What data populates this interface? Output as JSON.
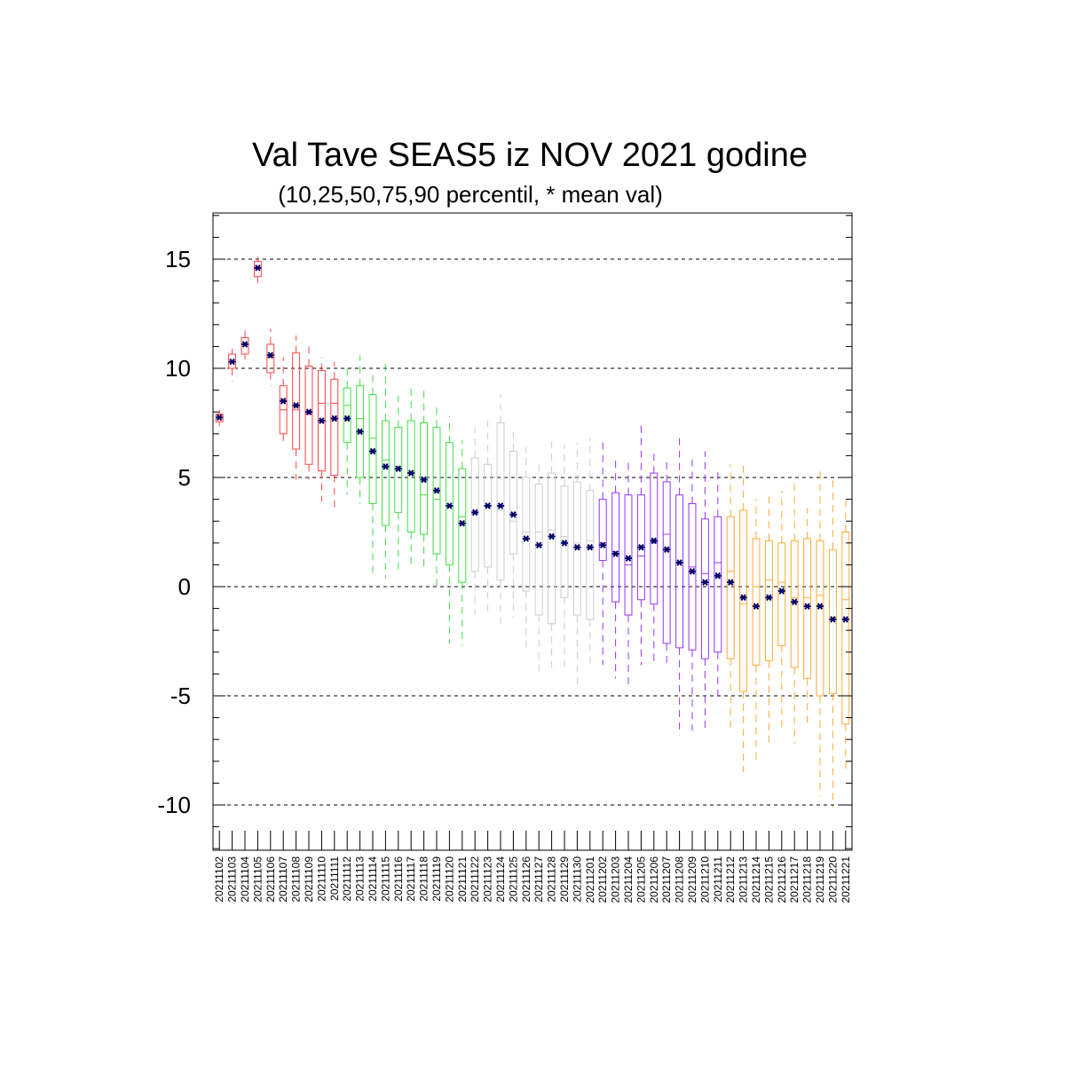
{
  "chart_data": {
    "type": "boxplot",
    "title": "Val Tave SEAS5 iz NOV 2021 godine",
    "subtitle": "(10,25,50,75,90 percentil, * mean val)",
    "xlabel": "",
    "ylabel": "",
    "ylim": [
      -12,
      17.2
    ],
    "yticks": [
      15,
      10,
      5,
      0,
      -5,
      -10
    ],
    "grid": "horizontal dashed at major ticks",
    "mean_marker": "*",
    "mean_color": "#000066",
    "month_colors": {
      "november": "#ff4444",
      "mid_november": "#44dd44",
      "late_november": "#cccccc",
      "december": "#9933ff",
      "late_december": "#ffaa33"
    },
    "boxes": [
      {
        "date": "20211102",
        "p10": 7.35,
        "p25": 7.55,
        "p50": 7.75,
        "p75": 7.9,
        "p90": 8.1,
        "mean": 7.75,
        "color": "#ff4444"
      },
      {
        "date": "20211103",
        "p10": 9.4,
        "p25": 10.0,
        "p50": 10.3,
        "p75": 10.65,
        "p90": 10.9,
        "mean": 10.3,
        "color": "#ff4444"
      },
      {
        "date": "20211104",
        "p10": 10.4,
        "p25": 10.65,
        "p50": 11.1,
        "p75": 11.4,
        "p90": 11.8,
        "mean": 11.1,
        "color": "#ff4444"
      },
      {
        "date": "20211105",
        "p10": 13.9,
        "p25": 14.2,
        "p50": 14.6,
        "p75": 14.9,
        "p90": 15.1,
        "mean": 14.6,
        "color": "#ff4444"
      },
      {
        "date": "20211106",
        "p10": 9.2,
        "p25": 9.8,
        "p50": 10.5,
        "p75": 11.1,
        "p90": 11.8,
        "mean": 10.6,
        "color": "#ff4444"
      },
      {
        "date": "20211107",
        "p10": 6.6,
        "p25": 7.0,
        "p50": 8.1,
        "p75": 9.2,
        "p90": 10.5,
        "mean": 8.5,
        "color": "#ff4444"
      },
      {
        "date": "20211108",
        "p10": 4.9,
        "p25": 6.3,
        "p50": 8.1,
        "p75": 10.7,
        "p90": 11.5,
        "mean": 8.3,
        "color": "#ff4444"
      },
      {
        "date": "20211109",
        "p10": 4.9,
        "p25": 5.6,
        "p50": 7.9,
        "p75": 10.1,
        "p90": 11.2,
        "mean": 8.0,
        "color": "#ff4444"
      },
      {
        "date": "20211110",
        "p10": 3.9,
        "p25": 5.3,
        "p50": 8.4,
        "p75": 9.9,
        "p90": 10.5,
        "mean": 7.6,
        "color": "#ff4444"
      },
      {
        "date": "20211111",
        "p10": 3.4,
        "p25": 5.1,
        "p50": 8.4,
        "p75": 9.5,
        "p90": 10.3,
        "mean": 7.7,
        "color": "#ff4444"
      },
      {
        "date": "20211112",
        "p10": 4.2,
        "p25": 6.6,
        "p50": 8.3,
        "p75": 9.1,
        "p90": 10.2,
        "mean": 7.7,
        "color": "#44dd44"
      },
      {
        "date": "20211113",
        "p10": 3.8,
        "p25": 5.0,
        "p50": 7.7,
        "p75": 9.2,
        "p90": 10.6,
        "mean": 7.1,
        "color": "#44dd44"
      },
      {
        "date": "20211114",
        "p10": 0.6,
        "p25": 3.8,
        "p50": 6.8,
        "p75": 8.8,
        "p90": 9.8,
        "mean": 6.2,
        "color": "#44dd44"
      },
      {
        "date": "20211115",
        "p10": 0.4,
        "p25": 2.8,
        "p50": 5.8,
        "p75": 7.6,
        "p90": 10.4,
        "mean": 5.5,
        "color": "#44dd44"
      },
      {
        "date": "20211116",
        "p10": 0.7,
        "p25": 3.4,
        "p50": 5.5,
        "p75": 7.3,
        "p90": 9.0,
        "mean": 5.4,
        "color": "#44dd44"
      },
      {
        "date": "20211117",
        "p10": 1.0,
        "p25": 2.5,
        "p50": 5.2,
        "p75": 7.6,
        "p90": 9.3,
        "mean": 5.2,
        "color": "#44dd44"
      },
      {
        "date": "20211118",
        "p10": 0.9,
        "p25": 2.4,
        "p50": 4.2,
        "p75": 7.5,
        "p90": 9.2,
        "mean": 4.9,
        "color": "#44dd44"
      },
      {
        "date": "20211119",
        "p10": 0.0,
        "p25": 1.5,
        "p50": 4.0,
        "p75": 7.3,
        "p90": 8.2,
        "mean": 4.4,
        "color": "#44dd44"
      },
      {
        "date": "20211120",
        "p10": -2.6,
        "p25": 1.0,
        "p50": 3.7,
        "p75": 6.6,
        "p90": 7.8,
        "mean": 3.7,
        "color": "#44dd44"
      },
      {
        "date": "20211121",
        "p10": -2.7,
        "p25": 0.2,
        "p50": 3.2,
        "p75": 5.4,
        "p90": 6.7,
        "mean": 2.9,
        "color": "#44dd44"
      },
      {
        "date": "20211122",
        "p10": -1.3,
        "p25": 0.7,
        "p50": 3.3,
        "p75": 5.9,
        "p90": 7.3,
        "mean": 3.4,
        "color": "#cccccc"
      },
      {
        "date": "20211123",
        "p10": -1.2,
        "p25": 0.9,
        "p50": 3.8,
        "p75": 5.6,
        "p90": 7.8,
        "mean": 3.7,
        "color": "#cccccc"
      },
      {
        "date": "20211124",
        "p10": -1.9,
        "p25": 0.3,
        "p50": 3.5,
        "p75": 7.5,
        "p90": 8.8,
        "mean": 3.7,
        "color": "#cccccc"
      },
      {
        "date": "20211125",
        "p10": -1.4,
        "p25": 1.5,
        "p50": 3.0,
        "p75": 6.2,
        "p90": 7.2,
        "mean": 3.3,
        "color": "#cccccc"
      },
      {
        "date": "20211126",
        "p10": -2.9,
        "p25": -0.2,
        "p50": 2.5,
        "p75": 5.0,
        "p90": 6.4,
        "mean": 2.2,
        "color": "#cccccc"
      },
      {
        "date": "20211127",
        "p10": -3.9,
        "p25": -1.3,
        "p50": 2.5,
        "p75": 4.7,
        "p90": 5.8,
        "mean": 1.9,
        "color": "#cccccc"
      },
      {
        "date": "20211128",
        "p10": -3.9,
        "p25": -1.7,
        "p50": 2.6,
        "p75": 5.2,
        "p90": 6.8,
        "mean": 2.3,
        "color": "#cccccc"
      },
      {
        "date": "20211129",
        "p10": -3.7,
        "p25": -0.5,
        "p50": 2.3,
        "p75": 4.6,
        "p90": 6.5,
        "mean": 2.0,
        "color": "#cccccc"
      },
      {
        "date": "20211130",
        "p10": -4.6,
        "p25": -1.3,
        "p50": 2.0,
        "p75": 4.8,
        "p90": 6.6,
        "mean": 1.8,
        "color": "#cccccc"
      },
      {
        "date": "20211201",
        "p10": -3.6,
        "p25": -1.5,
        "p50": 2.1,
        "p75": 4.4,
        "p90": 6.8,
        "mean": 1.8,
        "color": "#cccccc"
      },
      {
        "date": "20211202",
        "p10": -3.6,
        "p25": 1.2,
        "p50": 2.0,
        "p75": 4.0,
        "p90": 6.8,
        "mean": 1.9,
        "color": "#9933ff"
      },
      {
        "date": "20211203",
        "p10": -4.2,
        "p25": -0.7,
        "p50": 1.6,
        "p75": 4.3,
        "p90": 5.9,
        "mean": 1.5,
        "color": "#9933ff"
      },
      {
        "date": "20211204",
        "p10": -4.6,
        "p25": -1.3,
        "p50": 1.0,
        "p75": 4.2,
        "p90": 5.9,
        "mean": 1.3,
        "color": "#9933ff"
      },
      {
        "date": "20211205",
        "p10": -3.6,
        "p25": -0.6,
        "p50": 1.4,
        "p75": 4.2,
        "p90": 7.4,
        "mean": 1.8,
        "color": "#9933ff"
      },
      {
        "date": "20211206",
        "p10": -3.6,
        "p25": -0.8,
        "p50": 2.0,
        "p75": 5.2,
        "p90": 6.1,
        "mean": 2.1,
        "color": "#9933ff"
      },
      {
        "date": "20211207",
        "p10": -3.5,
        "p25": -2.6,
        "p50": 2.4,
        "p75": 4.8,
        "p90": 5.8,
        "mean": 1.7,
        "color": "#9933ff"
      },
      {
        "date": "20211208",
        "p10": -6.8,
        "p25": -2.8,
        "p50": 1.1,
        "p75": 4.2,
        "p90": 6.8,
        "mean": 1.1,
        "color": "#9933ff"
      },
      {
        "date": "20211209",
        "p10": -6.6,
        "p25": -2.9,
        "p50": 0.9,
        "p75": 3.8,
        "p90": 5.9,
        "mean": 0.7,
        "color": "#9933ff"
      },
      {
        "date": "20211210",
        "p10": -6.6,
        "p25": -3.3,
        "p50": 0.6,
        "p75": 3.1,
        "p90": 6.2,
        "mean": 0.2,
        "color": "#9933ff"
      },
      {
        "date": "20211211",
        "p10": -5.0,
        "p25": -3.0,
        "p50": 1.1,
        "p75": 3.2,
        "p90": 5.3,
        "mean": 0.5,
        "color": "#9933ff"
      },
      {
        "date": "20211212",
        "p10": -6.5,
        "p25": -3.3,
        "p50": 0.7,
        "p75": 3.2,
        "p90": 5.6,
        "mean": 0.2,
        "color": "#ffaa33"
      },
      {
        "date": "20211213",
        "p10": -8.5,
        "p25": -4.8,
        "p50": -0.8,
        "p75": 3.5,
        "p90": 5.6,
        "mean": -0.5,
        "color": "#ffaa33"
      },
      {
        "date": "20211214",
        "p10": -8.1,
        "p25": -3.6,
        "p50": 0.0,
        "p75": 2.2,
        "p90": 4.0,
        "mean": -0.9,
        "color": "#ffaa33"
      },
      {
        "date": "20211215",
        "p10": -7.3,
        "p25": -3.4,
        "p50": 0.3,
        "p75": 2.1,
        "p90": 4.3,
        "mean": -0.5,
        "color": "#ffaa33"
      },
      {
        "date": "20211216",
        "p10": -6.6,
        "p25": -2.7,
        "p50": 0.2,
        "p75": 2.0,
        "p90": 4.4,
        "mean": -0.2,
        "color": "#ffaa33"
      },
      {
        "date": "20211217",
        "p10": -7.2,
        "p25": -3.7,
        "p50": -0.5,
        "p75": 2.1,
        "p90": 4.8,
        "mean": -0.7,
        "color": "#ffaa33"
      },
      {
        "date": "20211218",
        "p10": -6.4,
        "p25": -4.2,
        "p50": -0.5,
        "p75": 2.2,
        "p90": 3.6,
        "mean": -0.9,
        "color": "#ffaa33"
      },
      {
        "date": "20211219",
        "p10": -9.6,
        "p25": -5.0,
        "p50": -0.4,
        "p75": 2.1,
        "p90": 5.3,
        "mean": -0.9,
        "color": "#ffaa33"
      },
      {
        "date": "20211220",
        "p10": -10.1,
        "p25": -4.9,
        "p50": -1.4,
        "p75": 1.7,
        "p90": 4.9,
        "mean": -1.5,
        "color": "#ffaa33"
      },
      {
        "date": "20211221",
        "p10": -8.4,
        "p25": -6.3,
        "p50": -0.6,
        "p75": 2.5,
        "p90": 4.1,
        "mean": -1.5,
        "color": "#ffaa33"
      }
    ]
  }
}
